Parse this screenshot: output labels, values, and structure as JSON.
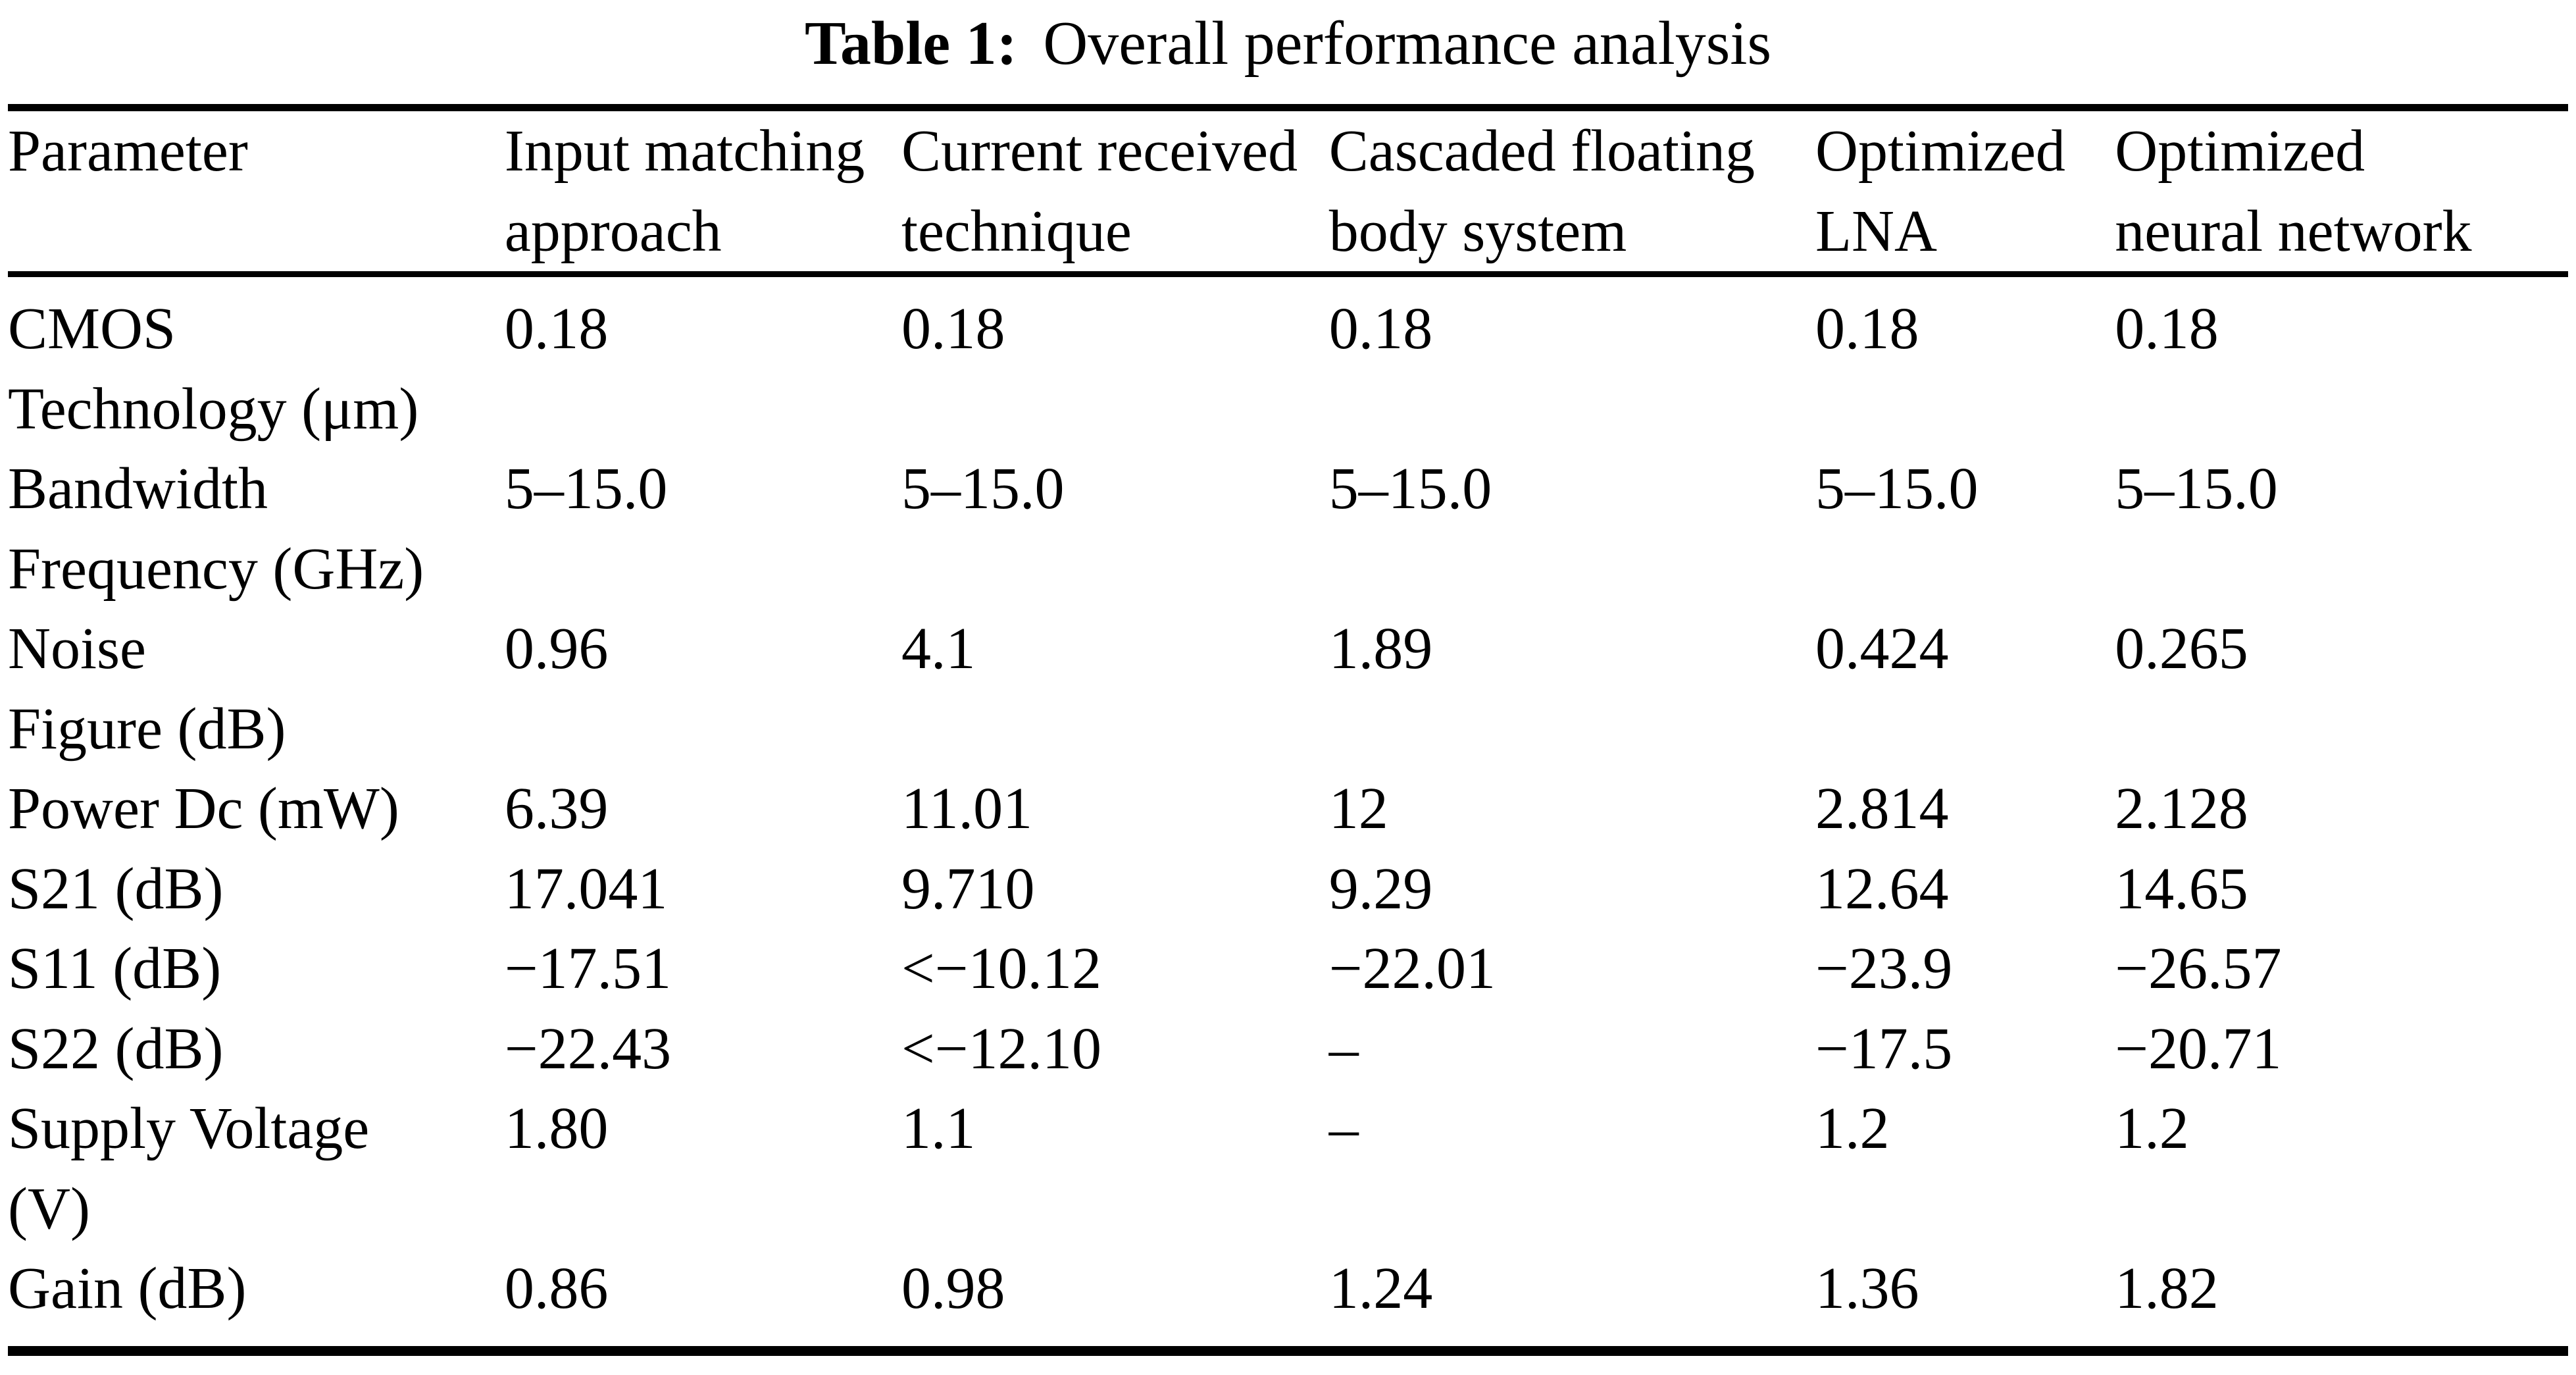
{
  "caption": {
    "label": "Table 1:",
    "title": "Overall performance analysis"
  },
  "table": {
    "columns": [
      "Parameter",
      "Input matching\napproach",
      "Current received\ntechnique",
      "Cascaded floating\nbody system",
      "Optimized\nLNA",
      "Optimized\nneural network"
    ],
    "rows": [
      {
        "parameter": "CMOS\nTechnology (μm)",
        "values": [
          "0.18",
          "0.18",
          "0.18",
          "0.18",
          "0.18"
        ]
      },
      {
        "parameter": "Bandwidth\nFrequency (GHz)",
        "values": [
          "5–15.0",
          "5–15.0",
          "5–15.0",
          "5–15.0",
          "5–15.0"
        ]
      },
      {
        "parameter": "Noise\nFigure (dB)",
        "values": [
          "0.96",
          "4.1",
          "1.89",
          "0.424",
          "0.265"
        ]
      },
      {
        "parameter": "Power Dc (mW)",
        "values": [
          "6.39",
          "11.01",
          "12",
          "2.814",
          "2.128"
        ]
      },
      {
        "parameter": "S21 (dB)",
        "values": [
          "17.041",
          "9.710",
          "9.29",
          "12.64",
          "14.65"
        ]
      },
      {
        "parameter": "S11 (dB)",
        "values": [
          "−17.51",
          "<−10.12",
          "−22.01",
          "−23.9",
          "−26.57"
        ]
      },
      {
        "parameter": "S22 (dB)",
        "values": [
          "−22.43",
          "<−12.10",
          "–",
          "−17.5",
          "−20.71"
        ]
      },
      {
        "parameter": "Supply Voltage\n(V)",
        "values": [
          "1.80",
          "1.1",
          "–",
          "1.2",
          "1.2"
        ]
      },
      {
        "parameter": "Gain (dB)",
        "values": [
          "0.86",
          "0.98",
          "1.24",
          "1.36",
          "1.82"
        ]
      }
    ]
  }
}
